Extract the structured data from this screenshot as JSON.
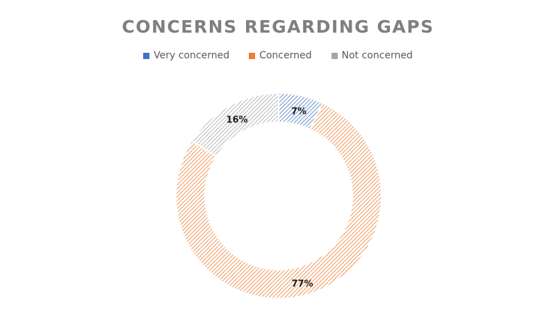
{
  "chart_data": {
    "type": "pie",
    "variant": "donut",
    "title": "CONCERNS REGARDING GAPS",
    "legend_position": "top",
    "categories": [
      "Very concerned",
      "Concerned",
      "Not concerned"
    ],
    "values": [
      7,
      77,
      16
    ],
    "data_labels": [
      "7%",
      "77%",
      "16%"
    ],
    "colors": [
      "#4472c4",
      "#ed7d31",
      "#a5a5a5"
    ],
    "fill_pattern": "diagonal-hatch"
  }
}
